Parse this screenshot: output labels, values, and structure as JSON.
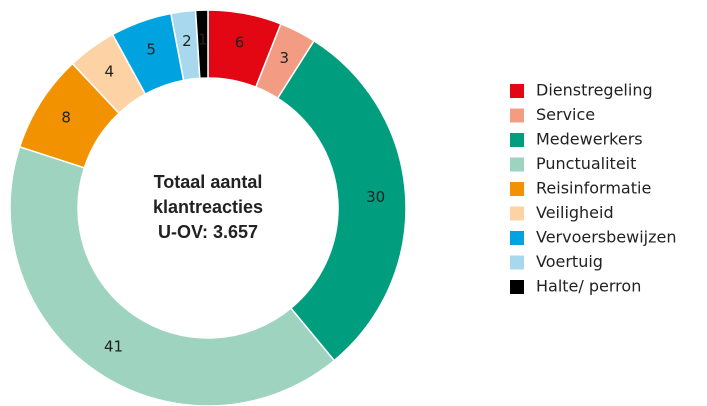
{
  "chart_data": {
    "type": "donut",
    "center_text": [
      "Totaal aantal",
      "klantreacties",
      "U-OV: 3.657"
    ],
    "categories": [
      "Dienstregeling",
      "Service",
      "Medewerkers",
      "Punctualiteit",
      "Reisinformatie",
      "Veiligheid",
      "Vervoersbewijzen",
      "Voertuig",
      "Halte/ perron"
    ],
    "values": [
      6,
      3,
      30,
      41,
      8,
      4,
      5,
      2,
      1
    ],
    "colors": [
      "#e30613",
      "#f29c83",
      "#009e7e",
      "#9dd3bf",
      "#f39200",
      "#fdd3a5",
      "#00a3e0",
      "#a8d8ee",
      "#000000"
    ],
    "legend": "right"
  }
}
